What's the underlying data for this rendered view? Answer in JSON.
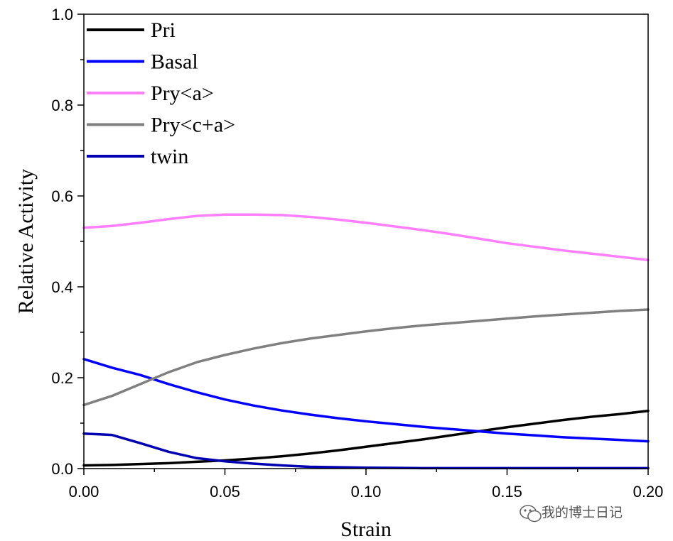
{
  "chart_data": {
    "type": "line",
    "title": "",
    "xlabel": "Strain",
    "ylabel": "Relative Activity",
    "xlim": [
      0.0,
      0.2
    ],
    "ylim": [
      0.0,
      1.0
    ],
    "x_ticks": [
      0.0,
      0.05,
      0.1,
      0.15,
      0.2
    ],
    "x_tick_labels": [
      "0.00",
      "0.05",
      "0.10",
      "0.15",
      "0.20"
    ],
    "y_ticks": [
      0.0,
      0.2,
      0.4,
      0.6,
      0.8,
      1.0
    ],
    "y_tick_labels": [
      "0.0",
      "0.2",
      "0.4",
      "0.6",
      "0.8",
      "1.0"
    ],
    "grid": false,
    "legend_position": "top-left",
    "x": [
      0.0,
      0.01,
      0.02,
      0.03,
      0.04,
      0.05,
      0.06,
      0.07,
      0.08,
      0.09,
      0.1,
      0.11,
      0.12,
      0.13,
      0.14,
      0.15,
      0.16,
      0.17,
      0.18,
      0.19,
      0.2
    ],
    "series": [
      {
        "name": "Pri",
        "color": "#000000",
        "values": [
          0.007,
          0.008,
          0.01,
          0.012,
          0.015,
          0.018,
          0.022,
          0.027,
          0.033,
          0.04,
          0.048,
          0.056,
          0.064,
          0.073,
          0.082,
          0.091,
          0.099,
          0.107,
          0.114,
          0.12,
          0.127
        ]
      },
      {
        "name": "Basal",
        "color": "#0000ff",
        "values": [
          0.241,
          0.222,
          0.206,
          0.186,
          0.168,
          0.152,
          0.139,
          0.128,
          0.119,
          0.111,
          0.104,
          0.098,
          0.092,
          0.087,
          0.082,
          0.077,
          0.073,
          0.069,
          0.066,
          0.063,
          0.06
        ]
      },
      {
        "name": "Pry<a>",
        "color": "#ff7fff",
        "values": [
          0.53,
          0.534,
          0.541,
          0.549,
          0.556,
          0.559,
          0.559,
          0.558,
          0.554,
          0.548,
          0.541,
          0.533,
          0.525,
          0.516,
          0.506,
          0.496,
          0.488,
          0.48,
          0.473,
          0.466,
          0.459
        ]
      },
      {
        "name": "Pry<c+a>",
        "color": "#808080",
        "values": [
          0.14,
          0.16,
          0.186,
          0.212,
          0.234,
          0.25,
          0.264,
          0.276,
          0.286,
          0.294,
          0.302,
          0.309,
          0.315,
          0.32,
          0.325,
          0.33,
          0.335,
          0.339,
          0.343,
          0.347,
          0.35
        ]
      },
      {
        "name": "twin",
        "color": "#0000b0",
        "values": [
          0.077,
          0.074,
          0.056,
          0.037,
          0.023,
          0.016,
          0.011,
          0.007,
          0.004,
          0.003,
          0.002,
          0.0015,
          0.001,
          0.001,
          0.001,
          0.001,
          0.001,
          0.001,
          0.001,
          0.001,
          0.001
        ]
      }
    ]
  },
  "watermark": {
    "icon": "wechat-icon",
    "text": "我的博士日记"
  }
}
